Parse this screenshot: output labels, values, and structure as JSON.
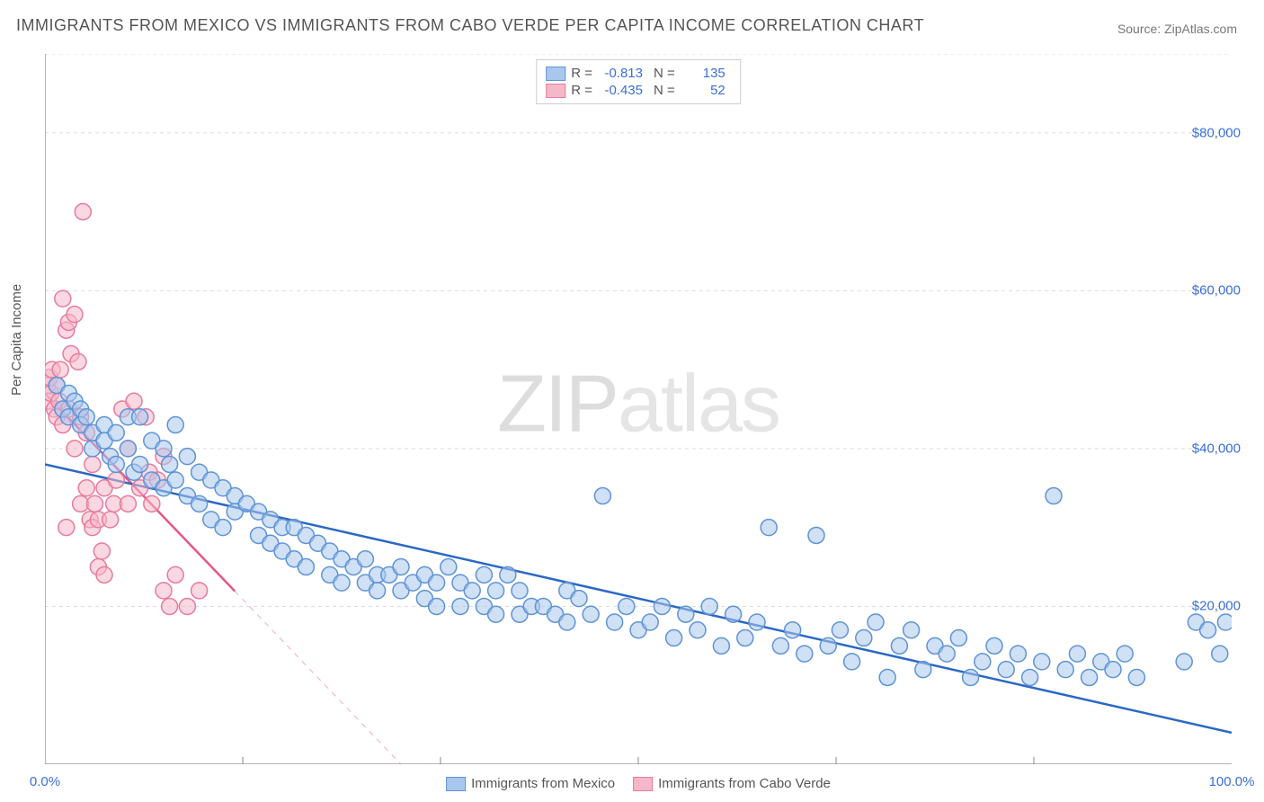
{
  "title": "IMMIGRANTS FROM MEXICO VS IMMIGRANTS FROM CABO VERDE PER CAPITA INCOME CORRELATION CHART",
  "source": "Source: ZipAtlas.com",
  "ylabel": "Per Capita Income",
  "watermark_1": "ZIP",
  "watermark_2": "atlas",
  "chart": {
    "type": "scatter",
    "xlim": [
      0,
      100
    ],
    "ylim": [
      0,
      90000
    ],
    "x_axis_pct": true,
    "xticks": [
      0,
      100
    ],
    "xtick_labels": [
      "0.0%",
      "100.0%"
    ],
    "xtick_minor": [
      16.67,
      33.33,
      50,
      66.67,
      83.33
    ],
    "yticks": [
      20000,
      40000,
      60000,
      80000
    ],
    "ytick_labels": [
      "$20,000",
      "$40,000",
      "$60,000",
      "$80,000"
    ],
    "grid_color": "#dddddd",
    "axis_color": "#888888",
    "point_radius": 9,
    "point_stroke_width": 1.5,
    "series": [
      {
        "key": "mexico",
        "label": "Immigrants from Mexico",
        "fill": "#a9c7ed",
        "stroke": "#5e94d6",
        "fill_opacity": 0.55,
        "R": "-0.813",
        "N": "135",
        "regression": {
          "x1": 0,
          "y1": 38000,
          "x2": 100,
          "y2": 4000,
          "color": "#2b68c5",
          "width": 2.5
        },
        "points": [
          [
            1,
            48000
          ],
          [
            1.5,
            45000
          ],
          [
            2,
            47000
          ],
          [
            2,
            44000
          ],
          [
            2.5,
            46000
          ],
          [
            3,
            43000
          ],
          [
            3,
            45000
          ],
          [
            3.5,
            44000
          ],
          [
            4,
            40000
          ],
          [
            4,
            42000
          ],
          [
            5,
            43000
          ],
          [
            5,
            41000
          ],
          [
            5.5,
            39000
          ],
          [
            6,
            42000
          ],
          [
            6,
            38000
          ],
          [
            7,
            44000
          ],
          [
            7,
            40000
          ],
          [
            7.5,
            37000
          ],
          [
            8,
            44000
          ],
          [
            8,
            38000
          ],
          [
            9,
            41000
          ],
          [
            9,
            36000
          ],
          [
            10,
            40000
          ],
          [
            10,
            35000
          ],
          [
            10.5,
            38000
          ],
          [
            11,
            43000
          ],
          [
            11,
            36000
          ],
          [
            12,
            39000
          ],
          [
            12,
            34000
          ],
          [
            13,
            37000
          ],
          [
            13,
            33000
          ],
          [
            14,
            36000
          ],
          [
            14,
            31000
          ],
          [
            15,
            35000
          ],
          [
            15,
            30000
          ],
          [
            16,
            34000
          ],
          [
            16,
            32000
          ],
          [
            17,
            33000
          ],
          [
            18,
            32000
          ],
          [
            18,
            29000
          ],
          [
            19,
            31000
          ],
          [
            19,
            28000
          ],
          [
            20,
            30000
          ],
          [
            20,
            27000
          ],
          [
            21,
            30000
          ],
          [
            21,
            26000
          ],
          [
            22,
            29000
          ],
          [
            22,
            25000
          ],
          [
            23,
            28000
          ],
          [
            24,
            27000
          ],
          [
            24,
            24000
          ],
          [
            25,
            26000
          ],
          [
            25,
            23000
          ],
          [
            26,
            25000
          ],
          [
            27,
            26000
          ],
          [
            27,
            23000
          ],
          [
            28,
            24000
          ],
          [
            28,
            22000
          ],
          [
            29,
            24000
          ],
          [
            30,
            25000
          ],
          [
            30,
            22000
          ],
          [
            31,
            23000
          ],
          [
            32,
            24000
          ],
          [
            32,
            21000
          ],
          [
            33,
            23000
          ],
          [
            33,
            20000
          ],
          [
            34,
            25000
          ],
          [
            35,
            23000
          ],
          [
            35,
            20000
          ],
          [
            36,
            22000
          ],
          [
            37,
            24000
          ],
          [
            37,
            20000
          ],
          [
            38,
            22000
          ],
          [
            38,
            19000
          ],
          [
            39,
            24000
          ],
          [
            40,
            22000
          ],
          [
            40,
            19000
          ],
          [
            41,
            20000
          ],
          [
            42,
            20000
          ],
          [
            43,
            19000
          ],
          [
            44,
            22000
          ],
          [
            44,
            18000
          ],
          [
            45,
            21000
          ],
          [
            46,
            19000
          ],
          [
            47,
            34000
          ],
          [
            48,
            18000
          ],
          [
            49,
            20000
          ],
          [
            50,
            17000
          ],
          [
            51,
            18000
          ],
          [
            52,
            20000
          ],
          [
            53,
            16000
          ],
          [
            54,
            19000
          ],
          [
            55,
            17000
          ],
          [
            56,
            20000
          ],
          [
            57,
            15000
          ],
          [
            58,
            19000
          ],
          [
            59,
            16000
          ],
          [
            60,
            18000
          ],
          [
            61,
            30000
          ],
          [
            62,
            15000
          ],
          [
            63,
            17000
          ],
          [
            64,
            14000
          ],
          [
            65,
            29000
          ],
          [
            66,
            15000
          ],
          [
            67,
            17000
          ],
          [
            68,
            13000
          ],
          [
            69,
            16000
          ],
          [
            70,
            18000
          ],
          [
            71,
            11000
          ],
          [
            72,
            15000
          ],
          [
            73,
            17000
          ],
          [
            74,
            12000
          ],
          [
            75,
            15000
          ],
          [
            76,
            14000
          ],
          [
            77,
            16000
          ],
          [
            78,
            11000
          ],
          [
            79,
            13000
          ],
          [
            80,
            15000
          ],
          [
            81,
            12000
          ],
          [
            82,
            14000
          ],
          [
            83,
            11000
          ],
          [
            84,
            13000
          ],
          [
            85,
            34000
          ],
          [
            86,
            12000
          ],
          [
            87,
            14000
          ],
          [
            88,
            11000
          ],
          [
            89,
            13000
          ],
          [
            90,
            12000
          ],
          [
            91,
            14000
          ],
          [
            92,
            11000
          ],
          [
            96,
            13000
          ],
          [
            97,
            18000
          ],
          [
            98,
            17000
          ],
          [
            99,
            14000
          ],
          [
            99.5,
            18000
          ]
        ]
      },
      {
        "key": "cabo_verde",
        "label": "Immigrants from Cabo Verde",
        "fill": "#f5b8c9",
        "stroke": "#e77ba0",
        "fill_opacity": 0.55,
        "R": "-0.435",
        "N": "52",
        "regression": {
          "x1": 0,
          "y1": 47000,
          "x2": 30,
          "y2": 0,
          "color": "#e5558a",
          "width": 2.5,
          "dash_after_x": 16
        },
        "points": [
          [
            0.2,
            48000
          ],
          [
            0.3,
            46000
          ],
          [
            0.4,
            49000
          ],
          [
            0.5,
            47000
          ],
          [
            0.6,
            50000
          ],
          [
            0.8,
            45000
          ],
          [
            1,
            48000
          ],
          [
            1,
            44000
          ],
          [
            1.2,
            46000
          ],
          [
            1.3,
            50000
          ],
          [
            1.5,
            59000
          ],
          [
            1.5,
            43000
          ],
          [
            1.8,
            55000
          ],
          [
            1.8,
            30000
          ],
          [
            2,
            56000
          ],
          [
            2,
            45000
          ],
          [
            2.2,
            52000
          ],
          [
            2.5,
            57000
          ],
          [
            2.5,
            40000
          ],
          [
            2.8,
            51000
          ],
          [
            3,
            44000
          ],
          [
            3,
            33000
          ],
          [
            3.2,
            70000
          ],
          [
            3.5,
            42000
          ],
          [
            3.5,
            35000
          ],
          [
            3.8,
            31000
          ],
          [
            4,
            38000
          ],
          [
            4,
            30000
          ],
          [
            4.2,
            33000
          ],
          [
            4.5,
            31000
          ],
          [
            4.5,
            25000
          ],
          [
            4.8,
            27000
          ],
          [
            5,
            35000
          ],
          [
            5,
            24000
          ],
          [
            5.5,
            31000
          ],
          [
            5.8,
            33000
          ],
          [
            6,
            36000
          ],
          [
            6.5,
            45000
          ],
          [
            7,
            40000
          ],
          [
            7,
            33000
          ],
          [
            7.5,
            46000
          ],
          [
            8,
            35000
          ],
          [
            8.5,
            44000
          ],
          [
            8.8,
            37000
          ],
          [
            9,
            33000
          ],
          [
            9.5,
            36000
          ],
          [
            10,
            39000
          ],
          [
            10,
            22000
          ],
          [
            10.5,
            20000
          ],
          [
            11,
            24000
          ],
          [
            12,
            20000
          ],
          [
            13,
            22000
          ]
        ]
      }
    ]
  },
  "legend_bottom": [
    {
      "label": "Immigrants from Mexico",
      "fill": "#a9c7ed",
      "stroke": "#5e94d6"
    },
    {
      "label": "Immigrants from Cabo Verde",
      "fill": "#f5b8c9",
      "stroke": "#e77ba0"
    }
  ]
}
